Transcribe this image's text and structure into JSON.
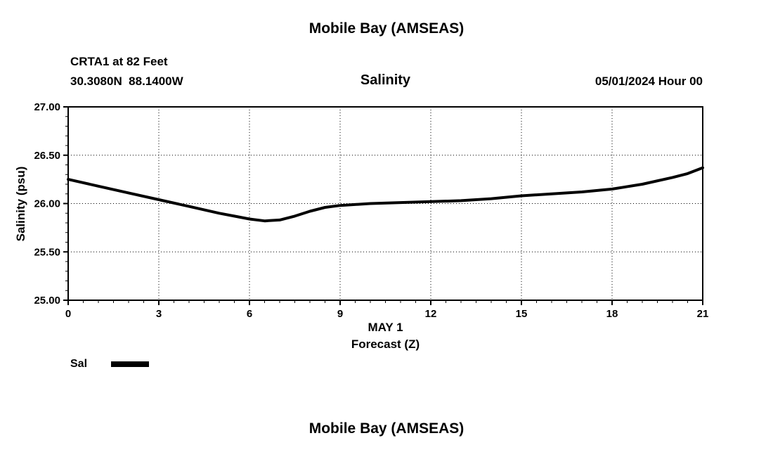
{
  "page": {
    "top_title": "Mobile Bay (AMSEAS)",
    "bottom_title": "Mobile Bay (AMSEAS)"
  },
  "header": {
    "station": "CRTA1 at 82 Feet",
    "coordinates": "30.3080N  88.1400W",
    "datetime": "05/01/2024 Hour 00"
  },
  "chart_data": {
    "type": "line",
    "title": "Salinity",
    "ylabel": "Salinity (psu)",
    "xlabel_line1": "MAY 1",
    "xlabel_line2": "Forecast (Z)",
    "xlim": [
      0,
      21
    ],
    "ylim": [
      25.0,
      27.0
    ],
    "xticks": [
      0,
      3,
      6,
      9,
      12,
      15,
      18,
      21
    ],
    "yticks": [
      "27.00",
      "26.50",
      "26.00",
      "25.50",
      "25.00"
    ],
    "ytick_values": [
      27.0,
      26.5,
      26.0,
      25.5,
      25.0
    ],
    "grid": true,
    "line_color": "#000000",
    "legend_position": "bottom-left",
    "legend": [
      {
        "label": "Sal",
        "color": "#000000"
      }
    ],
    "series": [
      {
        "name": "Sal",
        "x": [
          0,
          1,
          2,
          3,
          4,
          5,
          5.5,
          6,
          6.5,
          7,
          7.5,
          8,
          8.5,
          9,
          10,
          11,
          12,
          13,
          14,
          15,
          16,
          17,
          18,
          19,
          20,
          20.5,
          21
        ],
        "values": [
          26.25,
          26.18,
          26.11,
          26.04,
          25.97,
          25.9,
          25.87,
          25.84,
          25.82,
          25.83,
          25.87,
          25.92,
          25.96,
          25.98,
          26.0,
          26.01,
          26.02,
          26.03,
          26.05,
          26.08,
          26.1,
          26.12,
          26.15,
          26.2,
          26.27,
          26.31,
          26.37
        ]
      }
    ]
  }
}
